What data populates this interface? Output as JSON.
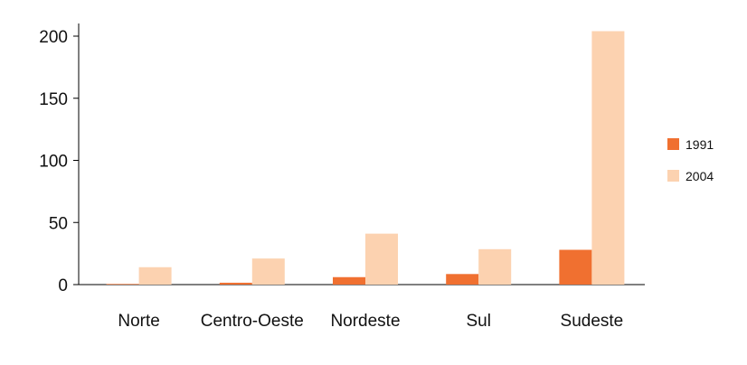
{
  "chart_data": {
    "type": "bar",
    "categories": [
      "Norte",
      "Centro-Oeste",
      "Nordeste",
      "Sul",
      "Sudeste"
    ],
    "series": [
      {
        "name": "1991",
        "color": "#f07030",
        "values": [
          0.5,
          1.5,
          6,
          8.5,
          28
        ]
      },
      {
        "name": "2004",
        "color": "#fcd2b0",
        "values": [
          14,
          21,
          41,
          28.5,
          204
        ]
      }
    ],
    "ylim": [
      0,
      200
    ],
    "yticks": [
      0,
      50,
      100,
      150,
      200
    ],
    "ytick_labels": [
      "0",
      "50",
      "100",
      "150",
      "200"
    ],
    "legend_position": "right",
    "grid": false
  }
}
